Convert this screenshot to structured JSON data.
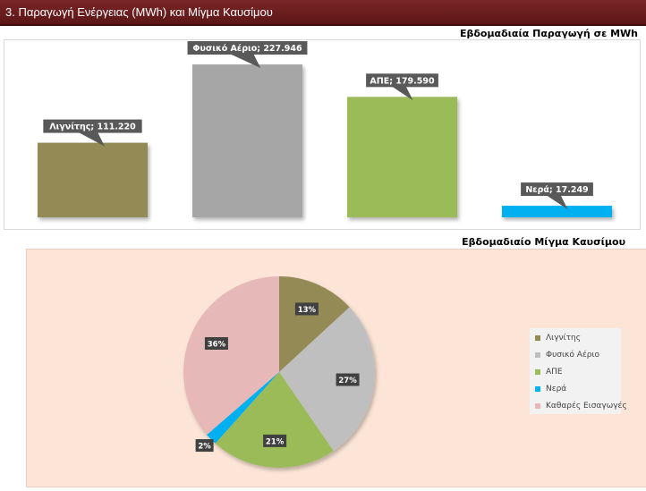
{
  "header": {
    "title": "3. Παραγωγή Ενέργειας (MWh) και Μίγμα Καυσίμου"
  },
  "chart_data": [
    {
      "type": "bar",
      "title": "Εβδομαδιαία Παραγωγή σε MWh",
      "categories": [
        "Λιγνίτης",
        "Φυσικό Αέριο",
        "ΑΠΕ",
        "Νερά"
      ],
      "values": [
        111.22,
        227.946,
        179.59,
        17.249
      ],
      "labels": [
        "Λιγνίτης; 111.220",
        "Φυσικό Αέριο; 227.946",
        "ΑΠΕ; 179.590",
        "Νερά; 17.249"
      ],
      "colors": [
        "#948a54",
        "#a6a6a6",
        "#9bbb59",
        "#00b0f0"
      ],
      "ylim": [
        0,
        240
      ]
    },
    {
      "type": "pie",
      "title": "Εβδομαδιαίο Μίγμα Καυσίμου",
      "categories": [
        "Λιγνίτης",
        "Φυσικό Αέριο",
        "ΑΠΕ",
        "Νερά",
        "Καθαρές Εισαγωγές"
      ],
      "values": [
        13,
        27,
        21,
        2,
        36
      ],
      "labels": [
        "13%",
        "27%",
        "21%",
        "2%",
        "36%"
      ],
      "colors": [
        "#948a54",
        "#bfbfbf",
        "#9bbb59",
        "#00b0f0",
        "#e6b9b8"
      ],
      "legend": "right"
    }
  ]
}
